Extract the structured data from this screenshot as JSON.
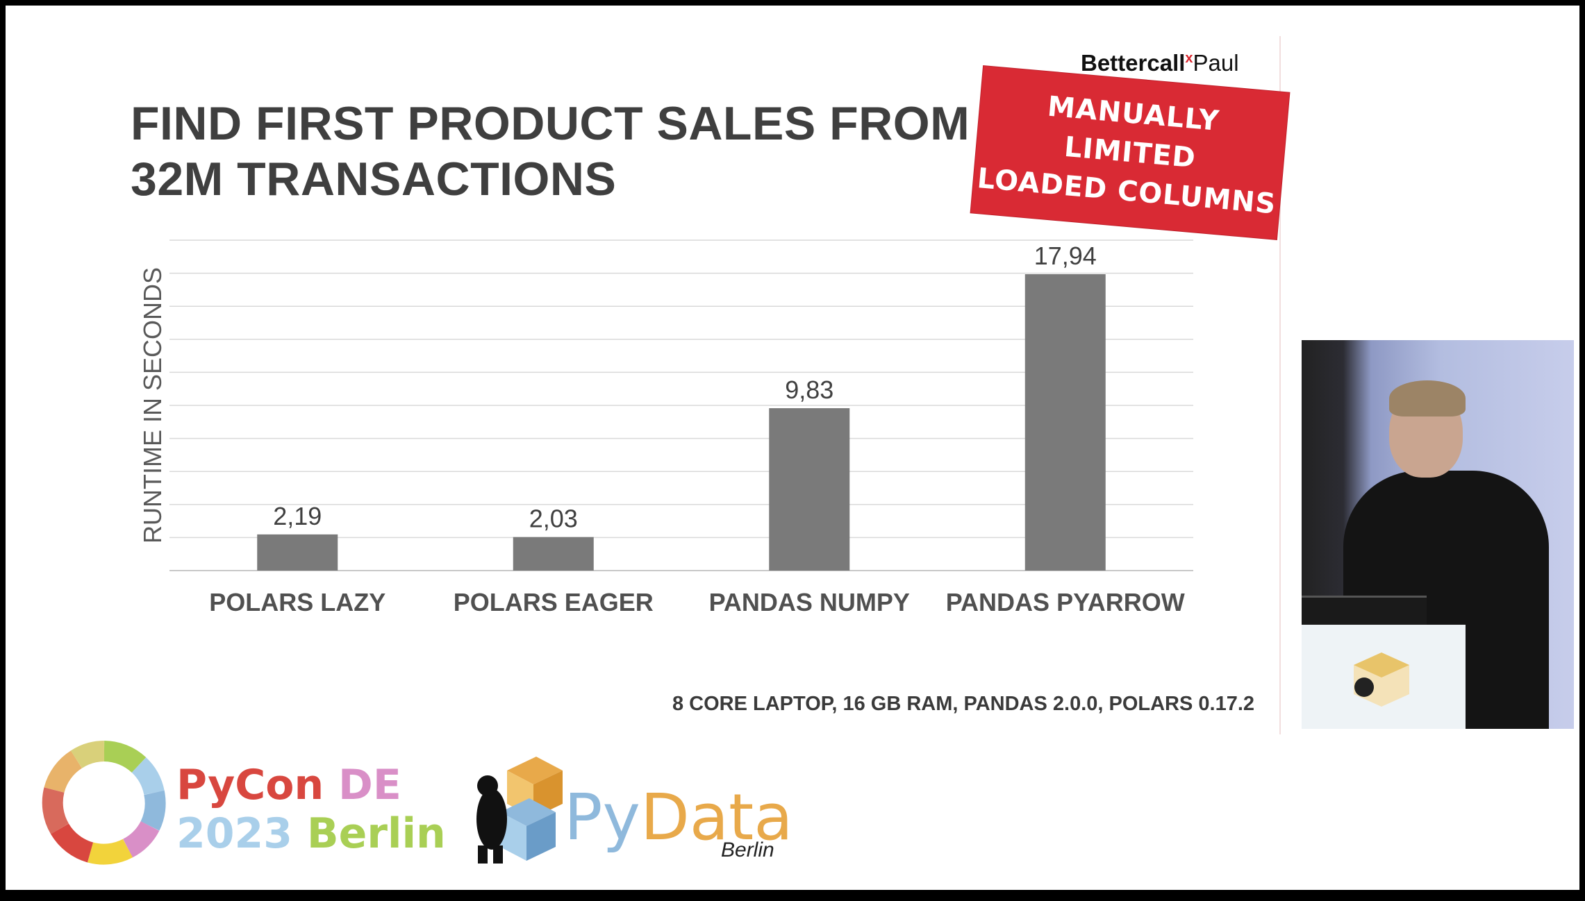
{
  "slide": {
    "title_line1": "FIND FIRST PRODUCT SALES FROM",
    "title_line2": "32M TRANSACTIONS",
    "brand_bold": "Bettercall",
    "brand_mark": "x",
    "brand_regular": "Paul",
    "stamp_line1": "MANUALLY",
    "stamp_line2": "LIMITED",
    "stamp_line3": "LOADED COLUMNS",
    "footnote": "8 CORE LAPTOP, 16 GB RAM, PANDAS 2.0.0, POLARS 0.17.2"
  },
  "chart_data": {
    "type": "bar",
    "categories": [
      "POLARS LAZY",
      "POLARS EAGER",
      "PANDAS NUMPY",
      "PANDAS PYARROW"
    ],
    "values": [
      2.19,
      2.03,
      9.83,
      17.94
    ],
    "data_labels": [
      "2,19",
      "2,03",
      "9,83",
      "17,94"
    ],
    "title": "",
    "xlabel": "",
    "ylabel": "RUNTIME IN SECONDS",
    "ylim": [
      0,
      20
    ],
    "gridlines_every": 2,
    "grid": true,
    "bar_color": "#7a7a7a",
    "grid_color": "#d9d9d9"
  },
  "logos": {
    "pycon_line1_a": "PyCon",
    "pycon_line1_b": " DE",
    "pycon_line2_a": "2023",
    "pycon_line2_b": " Berlin",
    "pydata_py": "Py",
    "pydata_data": "Data",
    "pydata_city": "Berlin"
  },
  "colors": {
    "stamp": "#d92a34",
    "pycon_red": "#d8473f",
    "pycon_pink": "#d98fc7",
    "pycon_blue": "#a9cfea",
    "pycon_green": "#a9cf55",
    "pydata_blue": "#8fb9dc",
    "pydata_orange": "#e8a94a"
  },
  "icons": {
    "pycon": "pycon-ring-logo",
    "pydata": "pydata-bear-cube-logo",
    "video": "speaker-video-feed"
  }
}
